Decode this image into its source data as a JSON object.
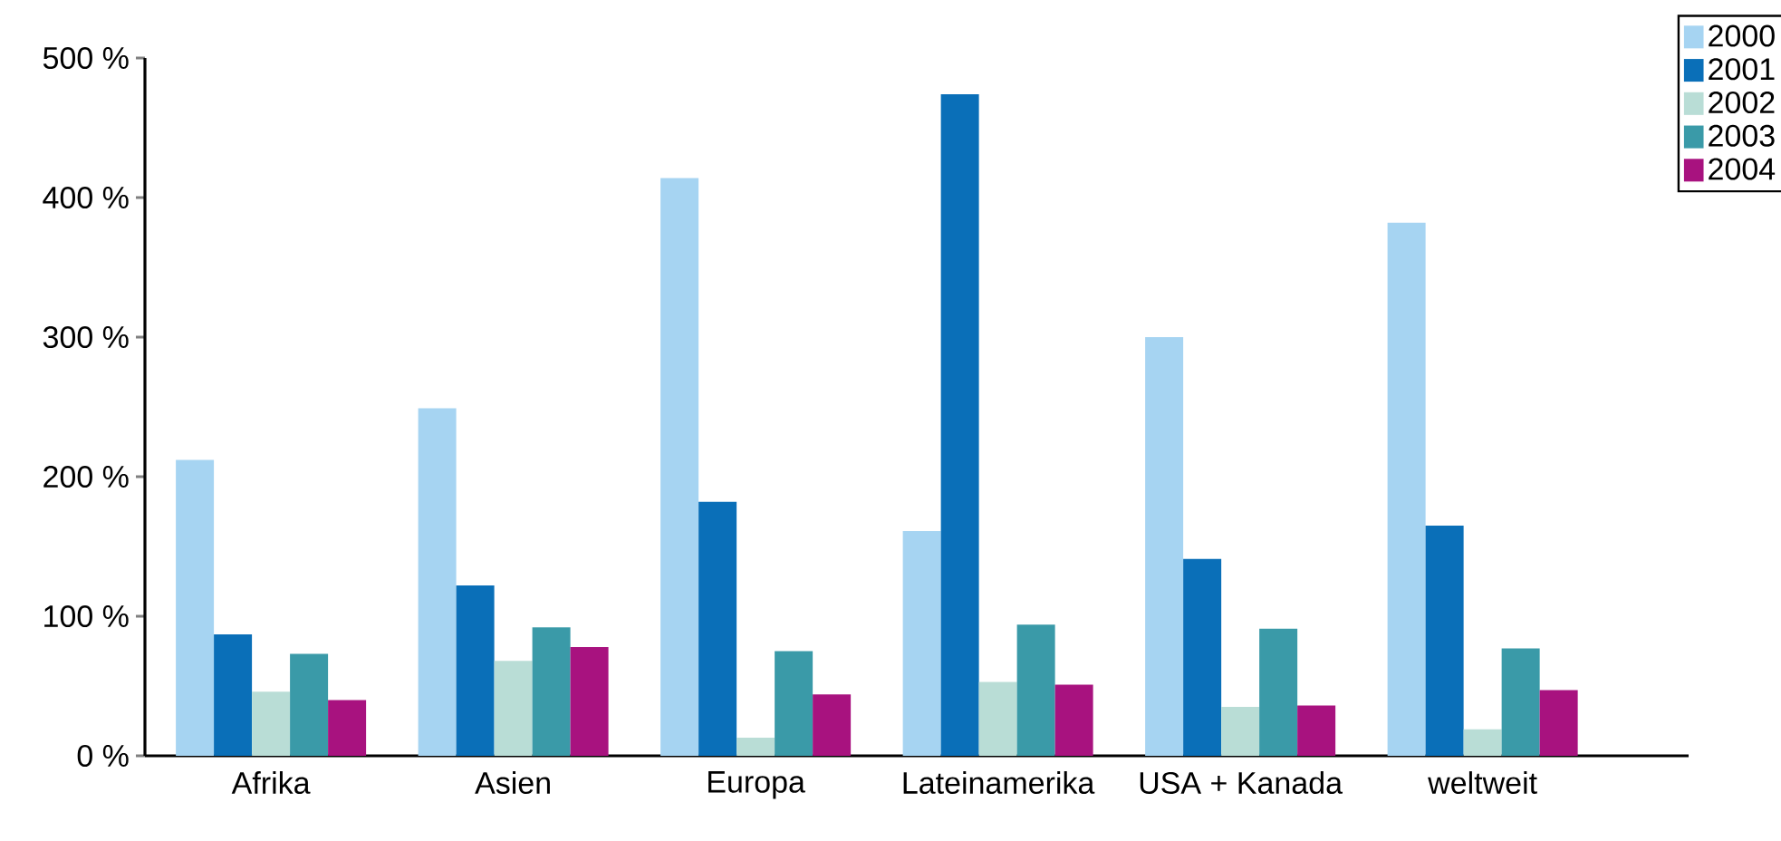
{
  "chart_data": {
    "type": "bar",
    "categories": [
      "Afrika",
      "Asien",
      "Europa",
      "Lateinamerika",
      "USA + Kanada",
      "weltweit"
    ],
    "series": [
      {
        "name": "2000",
        "color": "#a6d4f2",
        "values": [
          212,
          249,
          414,
          161,
          300,
          382
        ]
      },
      {
        "name": "2001",
        "color": "#0a6fb8",
        "values": [
          87,
          122,
          182,
          474,
          141,
          165
        ]
      },
      {
        "name": "2002",
        "color": "#b9ddd6",
        "values": [
          46,
          68,
          13,
          53,
          35,
          19
        ]
      },
      {
        "name": "2003",
        "color": "#3a9aa8",
        "values": [
          73,
          92,
          75,
          94,
          91,
          77
        ]
      },
      {
        "name": "2004",
        "color": "#a8127f",
        "values": [
          40,
          78,
          44,
          51,
          36,
          47
        ]
      }
    ],
    "ylim": [
      0,
      500
    ],
    "yticks": [
      {
        "value": 0,
        "label": "0 %"
      },
      {
        "value": 100,
        "label": "100 %"
      },
      {
        "value": 200,
        "label": "200 %"
      },
      {
        "value": 300,
        "label": "300 %"
      },
      {
        "value": 400,
        "label": "400 %"
      },
      {
        "value": 500,
        "label": "500 %"
      }
    ],
    "legend": "top right"
  }
}
